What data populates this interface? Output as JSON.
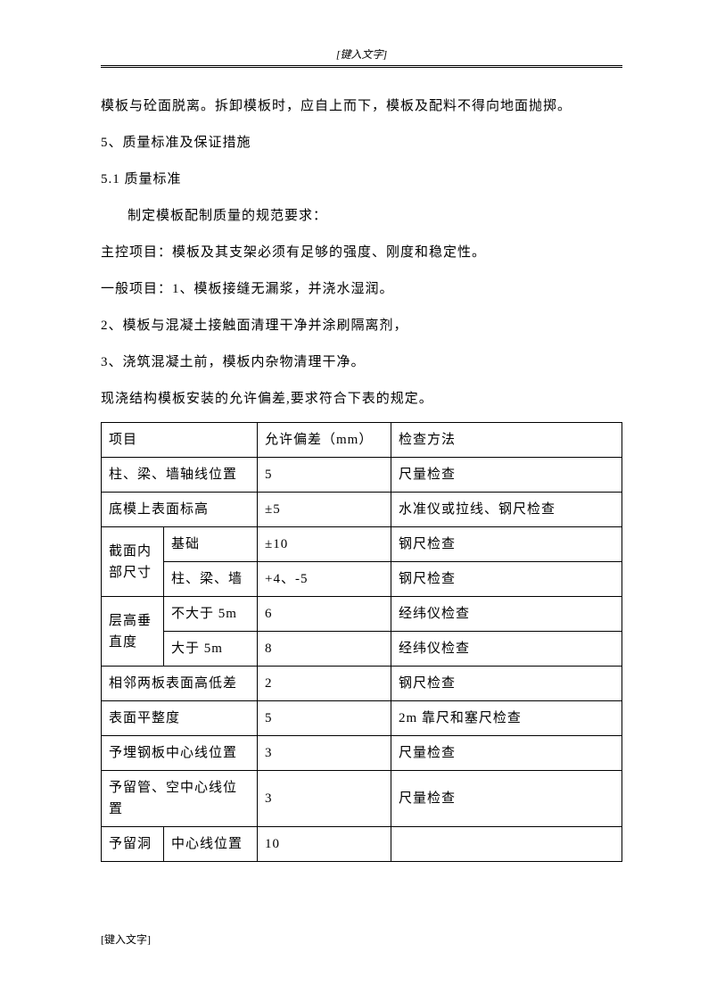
{
  "header": {
    "placeholder": "[键入文字]"
  },
  "paragraphs": {
    "p1": "模板与砼面脱离。拆卸模板时，应自上而下，模板及配料不得向地面抛掷。",
    "p2": "5、质量标准及保证措施",
    "p3": "5.1 质量标准",
    "p4": "制定模板配制质量的规范要求：",
    "p5": "主控项目：模板及其支架必须有足够的强度、刚度和稳定性。",
    "p6": "一般项目：1、模板接缝无漏浆，并浇水湿润。",
    "p7": "2、模板与混凝土接触面清理干净并涂刷隔离剂，",
    "p8": "3、浇筑混凝土前，模板内杂物清理干净。",
    "p9": "现浇结构模板安装的允许偏差,要求符合下表的规定。"
  },
  "table": {
    "header": {
      "c1": "项目",
      "c2": "允许偏差（mm）",
      "c3": "检查方法"
    },
    "rows": {
      "r1": {
        "c1": "柱、梁、墙轴线位置",
        "c2": "5",
        "c3": "尺量检查"
      },
      "r2": {
        "c1": "底模上表面标高",
        "c2": "±5",
        "c3": "水准仪或拉线、钢尺检查"
      },
      "r3": {
        "g": "截面内部尺寸",
        "c1": "基础",
        "c2": "±10",
        "c3": "钢尺检查"
      },
      "r4": {
        "c1": "柱、梁、墙",
        "c2": "+4、-5",
        "c3": "钢尺检查"
      },
      "r5": {
        "g": "层高垂直度",
        "c1": "不大于 5m",
        "c2": "6",
        "c3": "经纬仪检查"
      },
      "r6": {
        "c1": "大于 5m",
        "c2": "8",
        "c3": "经纬仪检查"
      },
      "r7": {
        "c1": "相邻两板表面高低差",
        "c2": "2",
        "c3": "钢尺检查"
      },
      "r8": {
        "c1": "表面平整度",
        "c2": "5",
        "c3": "2m 靠尺和塞尺检查"
      },
      "r9": {
        "c1": "予埋钢板中心线位置",
        "c2": "3",
        "c3": "尺量检查"
      },
      "r10": {
        "c1": "予留管、空中心线位置",
        "c2": "3",
        "c3": "尺量检查"
      },
      "r11": {
        "g": "予留洞",
        "c1": "中心线位置",
        "c2": "10",
        "c3": ""
      }
    }
  },
  "footer": {
    "placeholder": "[键入文字]"
  }
}
